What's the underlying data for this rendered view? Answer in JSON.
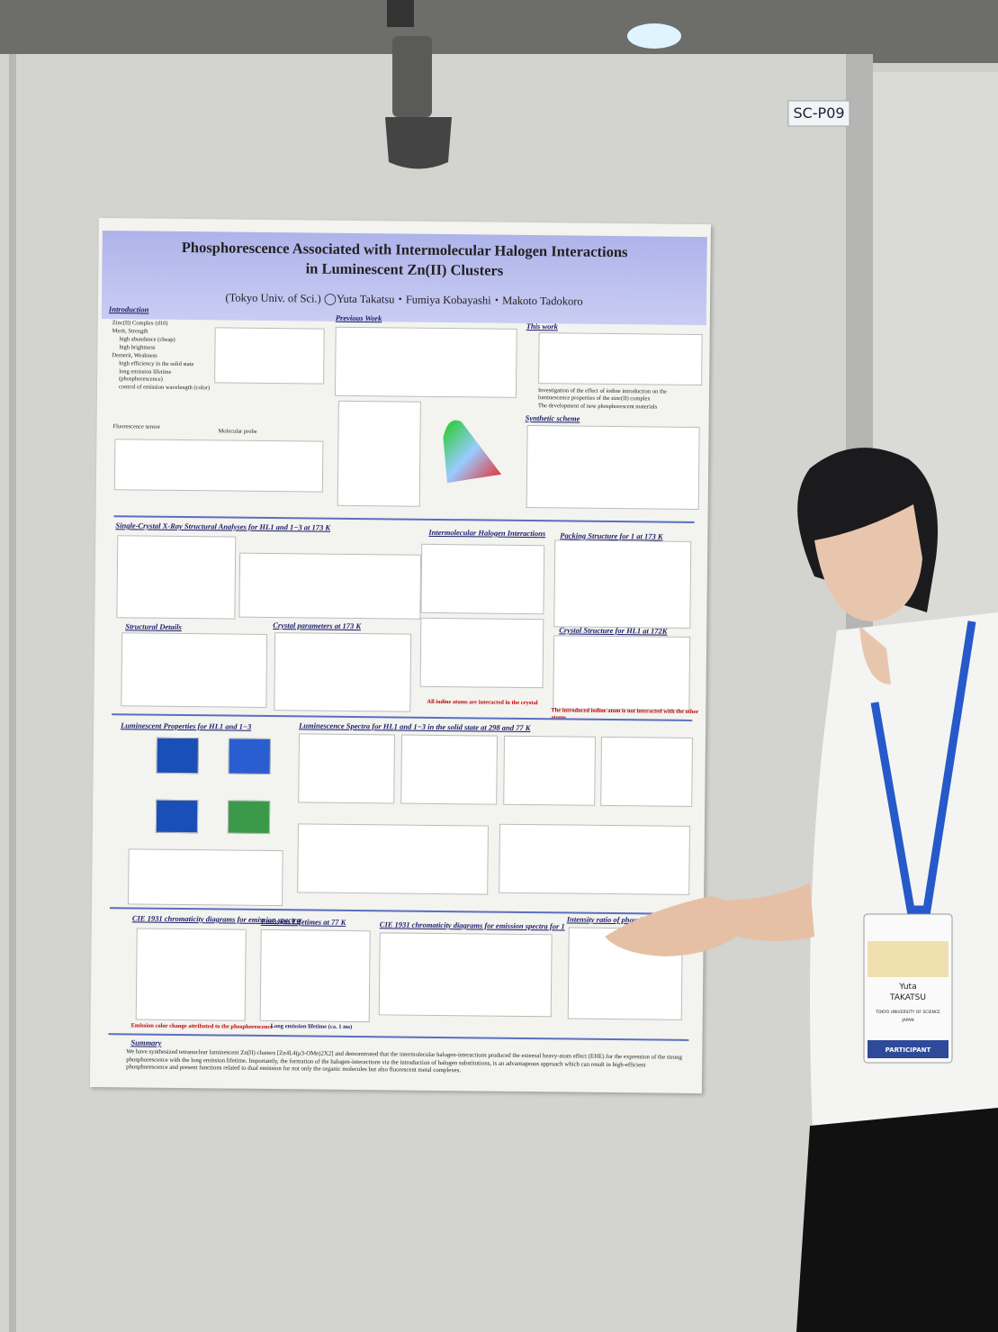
{
  "booth_label": "SC-P09",
  "poster": {
    "title_line1": "Phosphorescence Associated with Intermolecular Halogen Interactions",
    "title_line2": "in Luminescent Zn(II) Clusters",
    "authors": "(Tokyo Univ. of Sci.) ◯Yuta Takatsu・Fumiya Kobayashi・Makoto Tadokoro",
    "sections": [
      "Introduction",
      "Previous Work",
      "This work",
      "Synthetic scheme",
      "Single-Crystal X-Ray Structural Analyses for HL1 and 1−3 at 173 K",
      "Intermolecular Halogen Interactions",
      "Packing Structure for 1 at 173 K",
      "Structural Details",
      "Crystal parameters at 173 K",
      "Crystal Structure for HL1 at 172K",
      "Luminescent Properties for HL1 and 1−3",
      "Luminescence Spectra for HL1 and 1−3 in the solid state at 298 and 77 K",
      "CIE 1931 chromaticity diagrams for emission spectra",
      "Emission Lifetimes at 77 K",
      "CIE 1931 chromaticity diagrams for emission spectra for 1",
      "Intensity ratio of phosphorescence/fluorescence",
      "Summary"
    ],
    "intro_items": [
      "Zinc(II) Complex (d10)",
      "Merit, Strength",
      "high abundance (cheap)",
      "high brightness",
      "Demerit, Weakness",
      "high efficiency in the solid state",
      "long emission lifetime (phosphorescence)",
      "control of emission wavelength (color)"
    ],
    "intro_labels": [
      "Fluorescence sensor",
      "Molecular probe"
    ],
    "this_work_items": [
      "Investigation of the effect of iodine introduction on the luminescence properties of the zinc(II) complex",
      "The development of new phosphorescent materials"
    ],
    "notes": [
      "All iodine atoms are interacted in the crystal",
      "The introduced iodine atom is not interacted with the other atoms",
      "Emission color change attributed to the phosphorescence",
      "Long emission lifetime (ca. 1 ms)"
    ],
    "summary_text": "We have synthesized tetranuclear luminescent Zn(II) clusters [Zn4L4(μ3-OMe)2X2] and demonstrated that the intermolecular halogen-interactions produced the external heavy-atom effect (EHE) for the expression of the strong phosphorescence with the long emission lifetime. Importantly, the formation of the halogen-interactions via the introduction of halogen substitutions, is an advantageous approach which can result in high-efficient phosphorescence and present functions related to dual emission for not only the organic molecules but also fluorescent metal complexes."
  },
  "badge": {
    "first_name": "Yuta",
    "last_name": "TAKATSU",
    "affiliation": "TOKYO UNIVERSITY OF SCIENCE",
    "country": "JAPAN",
    "role": "PARTICIPANT"
  }
}
